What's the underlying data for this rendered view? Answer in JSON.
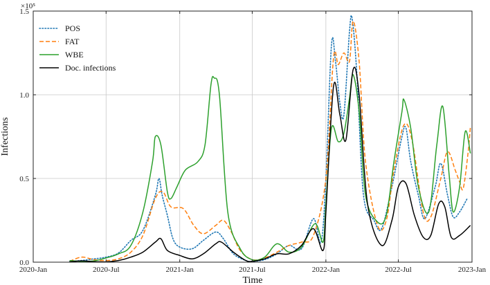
{
  "chart_data": {
    "type": "line",
    "xlabel": "Time",
    "ylabel": "Infections",
    "y_scale_multiplier": "×10⁵",
    "xlim": [
      "2020-01-01",
      "2023-01-01"
    ],
    "ylim": [
      0,
      150000
    ],
    "x_ticks": [
      "2020-01-01",
      "2020-07-01",
      "2021-01-01",
      "2021-07-01",
      "2022-01-01",
      "2022-07-01",
      "2023-01-01"
    ],
    "x_tick_labels": [
      "2020-Jan",
      "2020-Jul",
      "2021-Jan",
      "2021-Jul",
      "2022-Jan",
      "2022-Jul",
      "2023-Jan"
    ],
    "y_ticks": [
      0,
      50000,
      100000,
      150000
    ],
    "y_tick_labels": [
      "0.0",
      "0.5",
      "1.0",
      "1.5"
    ],
    "grid": true,
    "legend": "top-left",
    "series": [
      {
        "name": "POS",
        "color": "#1f77b4",
        "dash": "dotted",
        "points": [
          [
            "2020-04-01",
            500
          ],
          [
            "2020-05-01",
            1000
          ],
          [
            "2020-06-01",
            2000
          ],
          [
            "2020-07-01",
            3000
          ],
          [
            "2020-08-01",
            5500
          ],
          [
            "2020-09-01",
            13000
          ],
          [
            "2020-10-01",
            19000
          ],
          [
            "2020-11-01",
            40000
          ],
          [
            "2020-11-10",
            50000
          ],
          [
            "2020-11-18",
            40000
          ],
          [
            "2020-12-01",
            28000
          ],
          [
            "2020-12-15",
            14000
          ],
          [
            "2021-01-01",
            9000
          ],
          [
            "2021-02-01",
            8000
          ],
          [
            "2021-03-01",
            13000
          ],
          [
            "2021-04-01",
            18000
          ],
          [
            "2021-04-20",
            14000
          ],
          [
            "2021-05-15",
            5000
          ],
          [
            "2021-06-15",
            1000
          ],
          [
            "2021-07-01",
            500
          ],
          [
            "2021-08-01",
            1500
          ],
          [
            "2021-09-01",
            5000
          ],
          [
            "2021-10-01",
            10000
          ],
          [
            "2021-11-01",
            8000
          ],
          [
            "2021-12-01",
            26000
          ],
          [
            "2021-12-20",
            12000
          ],
          [
            "2022-01-01",
            50000
          ],
          [
            "2022-01-15",
            130000
          ],
          [
            "2022-01-25",
            120000
          ],
          [
            "2022-02-05",
            95000
          ],
          [
            "2022-02-15",
            88000
          ],
          [
            "2022-03-01",
            138000
          ],
          [
            "2022-03-08",
            145000
          ],
          [
            "2022-03-20",
            110000
          ],
          [
            "2022-04-05",
            40000
          ],
          [
            "2022-05-01",
            25000
          ],
          [
            "2022-05-20",
            20000
          ],
          [
            "2022-06-15",
            45000
          ],
          [
            "2022-07-10",
            75000
          ],
          [
            "2022-07-20",
            80000
          ],
          [
            "2022-08-01",
            60000
          ],
          [
            "2022-08-20",
            40000
          ],
          [
            "2022-09-05",
            26000
          ],
          [
            "2022-10-01",
            45000
          ],
          [
            "2022-10-15",
            59000
          ],
          [
            "2022-11-01",
            40000
          ],
          [
            "2022-11-15",
            27000
          ],
          [
            "2022-12-01",
            30000
          ],
          [
            "2022-12-20",
            38000
          ]
        ]
      },
      {
        "name": "FAT",
        "color": "#ff7f0e",
        "dash": "dashed",
        "points": [
          [
            "2020-04-01",
            500
          ],
          [
            "2020-05-01",
            3000
          ],
          [
            "2020-06-01",
            1500
          ],
          [
            "2020-07-01",
            1000
          ],
          [
            "2020-08-01",
            2000
          ],
          [
            "2020-09-01",
            6000
          ],
          [
            "2020-10-01",
            16000
          ],
          [
            "2020-11-01",
            38000
          ],
          [
            "2020-11-20",
            42000
          ],
          [
            "2020-12-10",
            33000
          ],
          [
            "2021-01-10",
            32000
          ],
          [
            "2021-02-05",
            22000
          ],
          [
            "2021-03-01",
            17000
          ],
          [
            "2021-04-01",
            22000
          ],
          [
            "2021-04-20",
            25000
          ],
          [
            "2021-05-10",
            18000
          ],
          [
            "2021-06-01",
            7000
          ],
          [
            "2021-07-01",
            1500
          ],
          [
            "2021-08-01",
            2500
          ],
          [
            "2021-09-01",
            6000
          ],
          [
            "2021-10-01",
            10000
          ],
          [
            "2021-11-01",
            12000
          ],
          [
            "2021-12-01",
            16000
          ],
          [
            "2022-01-01",
            50000
          ],
          [
            "2022-01-20",
            122000
          ],
          [
            "2022-02-01",
            118000
          ],
          [
            "2022-02-15",
            125000
          ],
          [
            "2022-03-01",
            120000
          ],
          [
            "2022-03-10",
            144000
          ],
          [
            "2022-03-25",
            120000
          ],
          [
            "2022-04-10",
            60000
          ],
          [
            "2022-05-10",
            22000
          ],
          [
            "2022-06-01",
            25000
          ],
          [
            "2022-06-20",
            55000
          ],
          [
            "2022-07-15",
            82000
          ],
          [
            "2022-08-05",
            72000
          ],
          [
            "2022-09-01",
            30000
          ],
          [
            "2022-09-20",
            27000
          ],
          [
            "2022-10-15",
            50000
          ],
          [
            "2022-11-01",
            66000
          ],
          [
            "2022-11-20",
            55000
          ],
          [
            "2022-12-01",
            48000
          ],
          [
            "2022-12-10",
            44000
          ],
          [
            "2022-12-22",
            65000
          ],
          [
            "2022-12-28",
            81000
          ]
        ]
      },
      {
        "name": "WBE",
        "color": "#2ca02c",
        "dash": "solid",
        "points": [
          [
            "2020-04-01",
            1000
          ],
          [
            "2020-05-01",
            500
          ],
          [
            "2020-06-01",
            800
          ],
          [
            "2020-07-01",
            2500
          ],
          [
            "2020-08-01",
            5000
          ],
          [
            "2020-09-01",
            10000
          ],
          [
            "2020-10-01",
            30000
          ],
          [
            "2020-10-25",
            60000
          ],
          [
            "2020-11-01",
            75000
          ],
          [
            "2020-11-15",
            70000
          ],
          [
            "2020-12-01",
            42000
          ],
          [
            "2020-12-10",
            38000
          ],
          [
            "2020-12-25",
            45000
          ],
          [
            "2021-01-15",
            55000
          ],
          [
            "2021-02-15",
            60000
          ],
          [
            "2021-03-05",
            70000
          ],
          [
            "2021-03-20",
            106000
          ],
          [
            "2021-03-28",
            110000
          ],
          [
            "2021-04-10",
            100000
          ],
          [
            "2021-05-01",
            30000
          ],
          [
            "2021-06-01",
            8000
          ],
          [
            "2021-07-01",
            1500
          ],
          [
            "2021-08-01",
            3000
          ],
          [
            "2021-09-01",
            11000
          ],
          [
            "2021-10-01",
            6000
          ],
          [
            "2021-11-01",
            9000
          ],
          [
            "2021-12-05",
            23000
          ],
          [
            "2021-12-25",
            12000
          ],
          [
            "2022-01-01",
            35000
          ],
          [
            "2022-01-15",
            80000
          ],
          [
            "2022-02-01",
            72000
          ],
          [
            "2022-02-15",
            77000
          ],
          [
            "2022-03-01",
            98000
          ],
          [
            "2022-03-10",
            112000
          ],
          [
            "2022-03-25",
            90000
          ],
          [
            "2022-04-10",
            40000
          ],
          [
            "2022-05-10",
            24000
          ],
          [
            "2022-06-01",
            28000
          ],
          [
            "2022-06-20",
            60000
          ],
          [
            "2022-07-10",
            90000
          ],
          [
            "2022-07-15",
            97000
          ],
          [
            "2022-08-01",
            80000
          ],
          [
            "2022-08-20",
            45000
          ],
          [
            "2022-09-15",
            30000
          ],
          [
            "2022-10-05",
            70000
          ],
          [
            "2022-10-20",
            93000
          ],
          [
            "2022-11-05",
            52000
          ],
          [
            "2022-11-15",
            30000
          ],
          [
            "2022-12-01",
            45000
          ],
          [
            "2022-12-15",
            78000
          ],
          [
            "2022-12-28",
            65000
          ]
        ]
      },
      {
        "name": "Doc. infections",
        "color": "#000000",
        "dash": "solid",
        "points": [
          [
            "2020-04-01",
            200
          ],
          [
            "2020-05-01",
            800
          ],
          [
            "2020-06-01",
            300
          ],
          [
            "2020-07-01",
            200
          ],
          [
            "2020-08-01",
            1000
          ],
          [
            "2020-09-01",
            3000
          ],
          [
            "2020-10-01",
            6000
          ],
          [
            "2020-11-01",
            12000
          ],
          [
            "2020-11-15",
            14000
          ],
          [
            "2020-12-01",
            7000
          ],
          [
            "2021-01-01",
            4000
          ],
          [
            "2021-02-01",
            2000
          ],
          [
            "2021-03-01",
            5000
          ],
          [
            "2021-04-01",
            11000
          ],
          [
            "2021-04-15",
            12000
          ],
          [
            "2021-05-15",
            6000
          ],
          [
            "2021-06-15",
            1000
          ],
          [
            "2021-07-01",
            500
          ],
          [
            "2021-08-01",
            2000
          ],
          [
            "2021-09-01",
            5000
          ],
          [
            "2021-10-01",
            5000
          ],
          [
            "2021-11-01",
            10000
          ],
          [
            "2021-12-01",
            20000
          ],
          [
            "2021-12-25",
            7000
          ],
          [
            "2022-01-01",
            30000
          ],
          [
            "2022-01-20",
            105000
          ],
          [
            "2022-02-05",
            88000
          ],
          [
            "2022-02-20",
            73000
          ],
          [
            "2022-03-10",
            115000
          ],
          [
            "2022-03-25",
            100000
          ],
          [
            "2022-04-15",
            35000
          ],
          [
            "2022-05-20",
            10000
          ],
          [
            "2022-06-15",
            25000
          ],
          [
            "2022-07-01",
            45000
          ],
          [
            "2022-07-20",
            47000
          ],
          [
            "2022-08-10",
            28000
          ],
          [
            "2022-09-01",
            15000
          ],
          [
            "2022-09-20",
            16000
          ],
          [
            "2022-10-10",
            35000
          ],
          [
            "2022-10-25",
            33000
          ],
          [
            "2022-11-10",
            15000
          ],
          [
            "2022-12-01",
            16000
          ],
          [
            "2022-12-28",
            22000
          ]
        ]
      }
    ]
  }
}
